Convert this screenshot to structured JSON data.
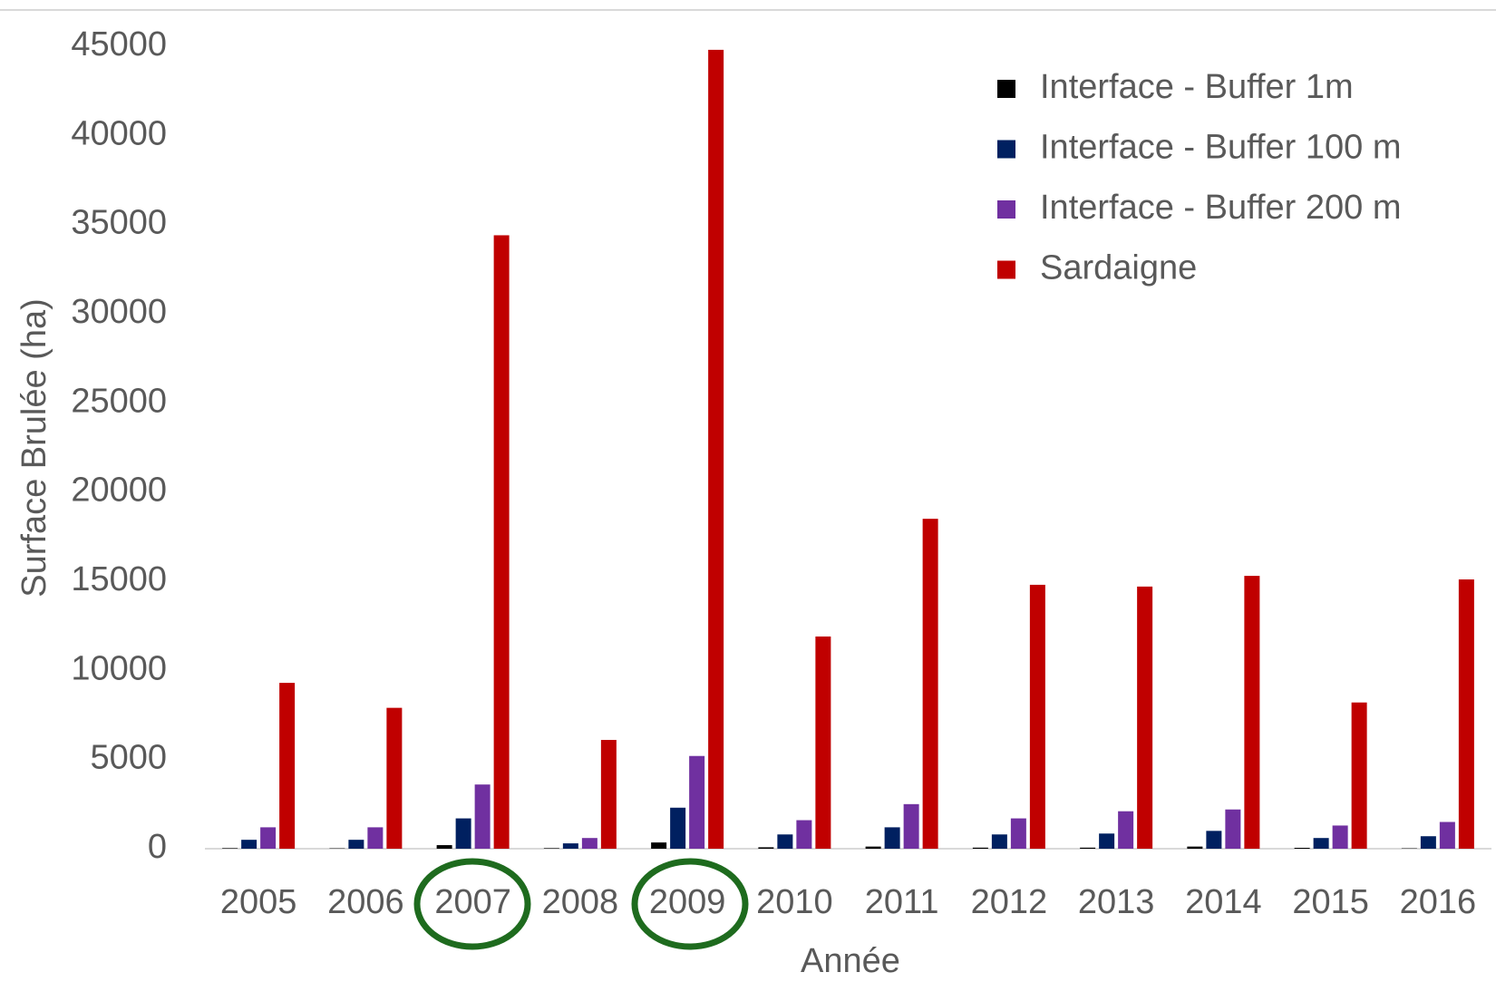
{
  "chart_data": {
    "type": "bar",
    "x_label": "Année",
    "y_label": "Surface Brulée (ha)",
    "categories": [
      "2005",
      "2006",
      "2007",
      "2008",
      "2009",
      "2010",
      "2011",
      "2012",
      "2013",
      "2014",
      "2015",
      "2016"
    ],
    "series": [
      {
        "name": "Interface - Buffer 1m",
        "color": "#000000",
        "values": [
          30,
          20,
          200,
          30,
          350,
          80,
          120,
          60,
          60,
          120,
          50,
          20
        ]
      },
      {
        "name": "Interface - Buffer 100 m",
        "color": "#002060",
        "values": [
          500,
          500,
          1700,
          300,
          2300,
          800,
          1200,
          800,
          850,
          1000,
          600,
          700
        ]
      },
      {
        "name": "Interface - Buffer 200 m",
        "color": "#7030a0",
        "values": [
          1200,
          1200,
          3600,
          600,
          5200,
          1600,
          2500,
          1700,
          2100,
          2200,
          1300,
          1500
        ]
      },
      {
        "name": "Sardaigne",
        "color": "#c00000",
        "values": [
          9300,
          7900,
          34400,
          6100,
          44800,
          11900,
          18500,
          14800,
          14700,
          15300,
          8200,
          15100
        ]
      }
    ],
    "ylim": [
      0,
      45000
    ],
    "yticks": [
      0,
      5000,
      10000,
      15000,
      20000,
      25000,
      30000,
      35000,
      40000,
      45000
    ],
    "grid": false,
    "legend": "upper right"
  }
}
